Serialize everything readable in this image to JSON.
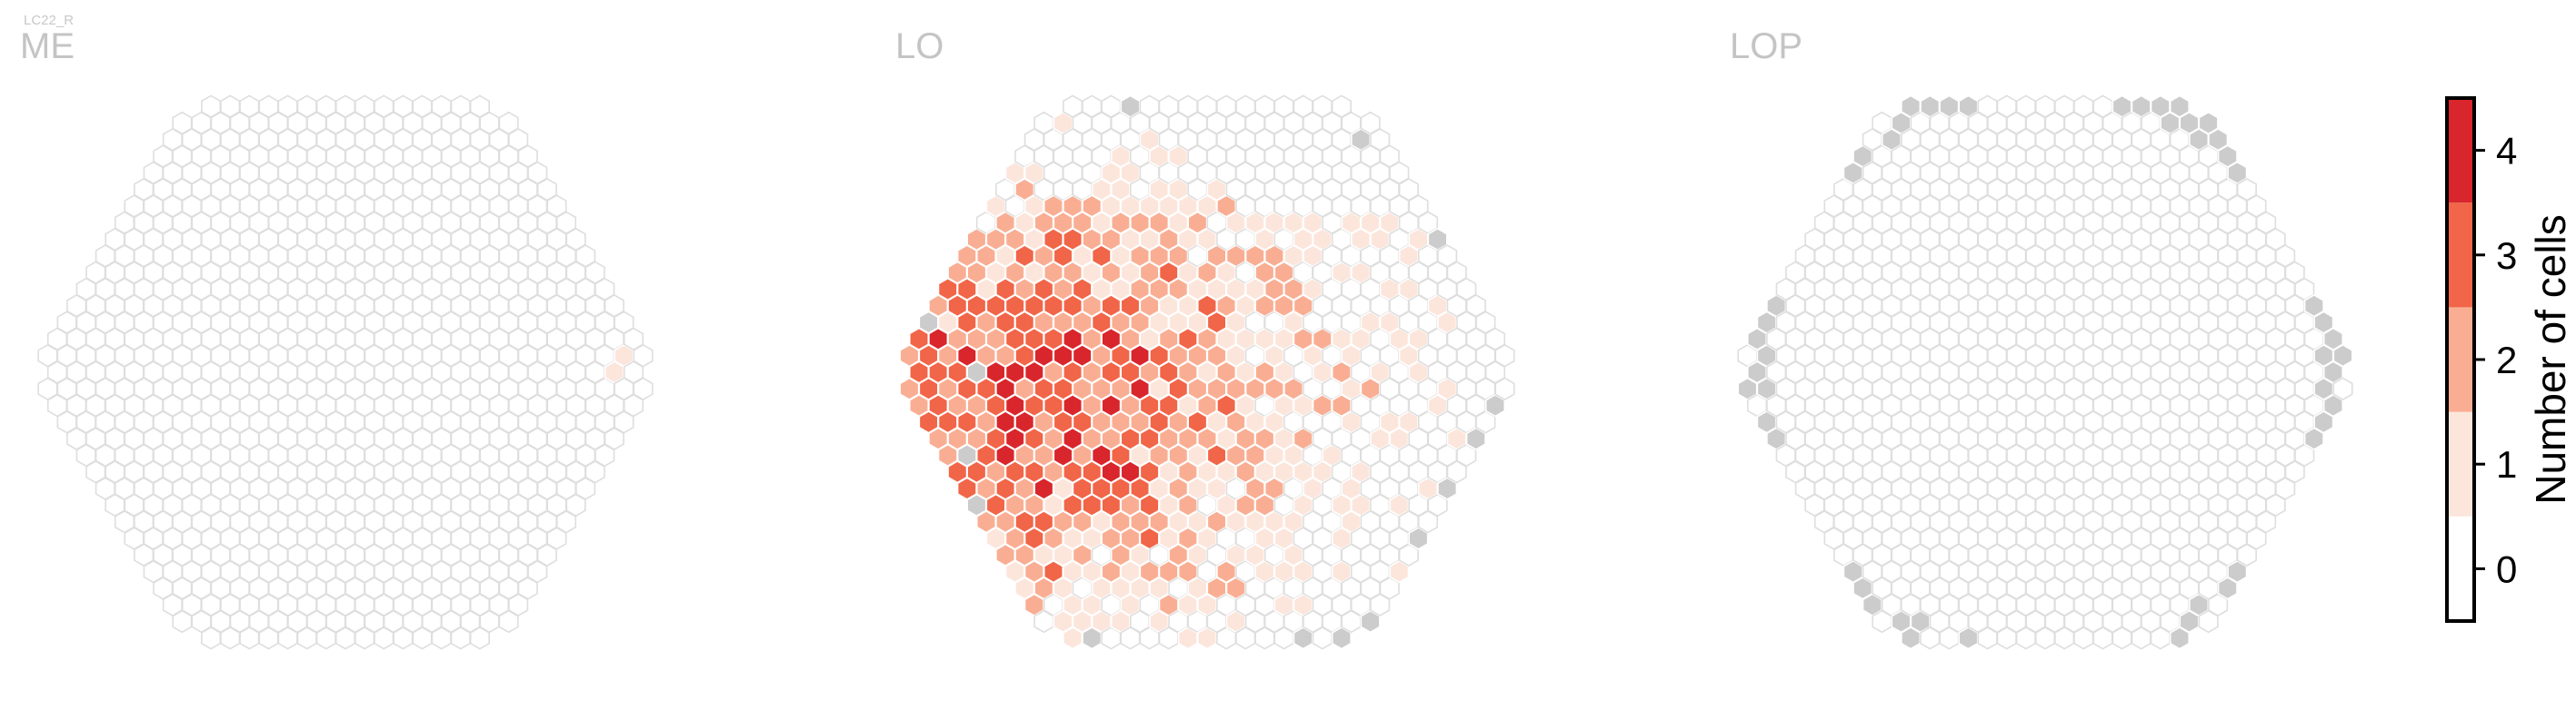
{
  "figure": {
    "cell_type_label": "LC22_R"
  },
  "chart_data": {
    "type": "heatmap",
    "description_grid": "hexagonal column map per neuropil",
    "panels": [
      {
        "name": "ME",
        "radius_cols": 16,
        "dark_cells": [],
        "colored_cells": [
          {
            "q": 15,
            "r": -1,
            "value": 1
          },
          {
            "q": 14,
            "r": 0,
            "value": 1
          }
        ]
      },
      {
        "name": "LO",
        "radius_cols": 16,
        "fill_pattern": "gradient-left-dense",
        "dark_cells": [
          {
            "q": -16,
            "r": 8
          },
          {
            "q": -15,
            "r": 5
          },
          {
            "q": -14,
            "r": 16
          },
          {
            "q": -13,
            "r": -3
          },
          {
            "q": -12,
            "r": 0
          },
          {
            "q": 4,
            "r": -16
          },
          {
            "q": 16,
            "r": -8
          },
          {
            "q": 15,
            "r": -14
          },
          {
            "q": 14,
            "r": 2
          },
          {
            "q": 12,
            "r": 4
          },
          {
            "q": 6,
            "r": 10
          },
          {
            "q": 9,
            "r": 7
          },
          {
            "q": -3,
            "r": 16
          },
          {
            "q": -1,
            "r": 16
          },
          {
            "q": 1,
            "r": 15
          }
        ],
        "value_distribution": {
          "0": 0.18,
          "1": 0.34,
          "2": 0.27,
          "3": 0.14,
          "4": 0.07
        }
      },
      {
        "name": "LOP",
        "radius_cols": 16,
        "dark_cells": "boundary-ring",
        "colored_cells": []
      }
    ],
    "colorbar": {
      "label": "Number of cells",
      "ticks": [
        0,
        1,
        2,
        3,
        4
      ],
      "colors": [
        "#ffffff",
        "#fce6dc",
        "#f9ae93",
        "#f16548",
        "#d8262c"
      ],
      "range": [
        -0.5,
        4.5
      ]
    },
    "colors": {
      "empty_fill": "#ffffff",
      "empty_stroke": "#dedede",
      "missing_fill": "#cccccc",
      "cell_stroke": "#ffffff"
    }
  }
}
